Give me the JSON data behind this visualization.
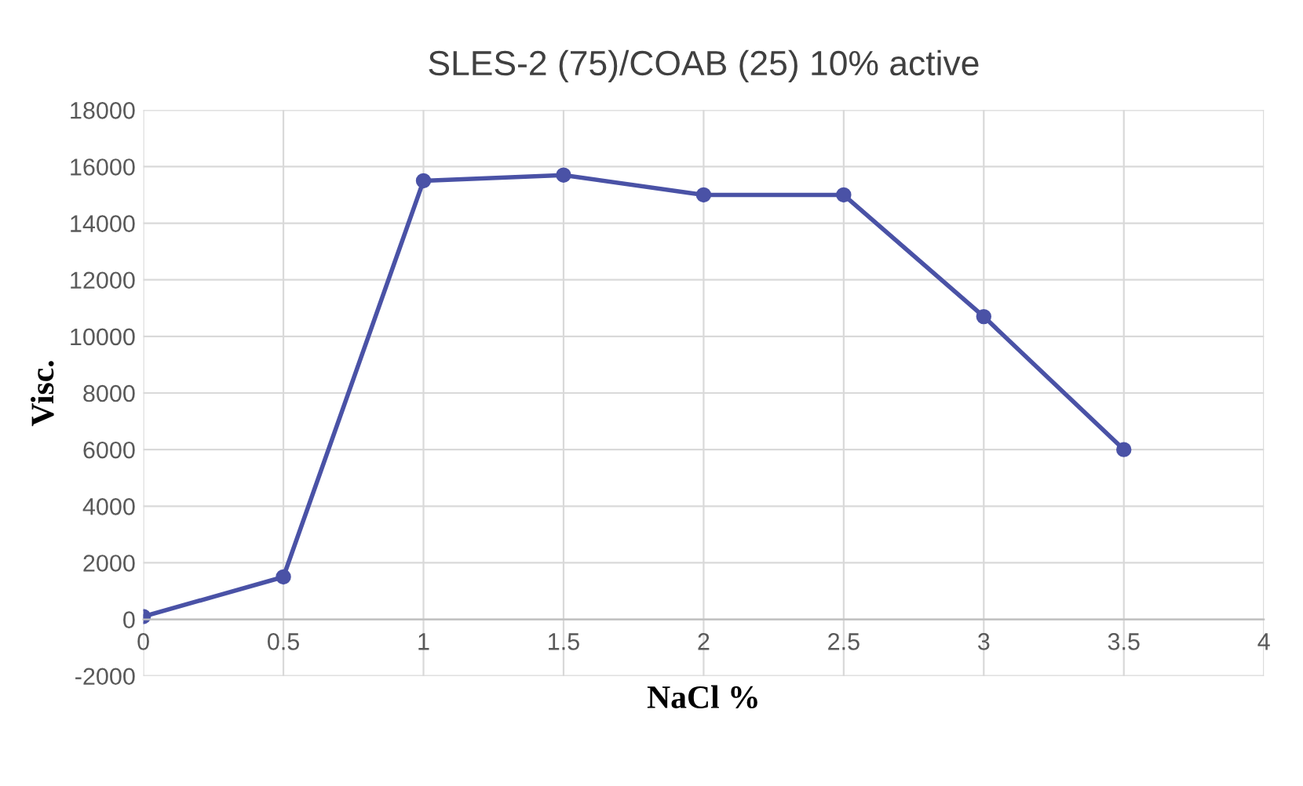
{
  "chart_data": {
    "type": "line",
    "title": "SLES-2 (75)/COAB (25) 10% active",
    "xlabel": "NaCl %",
    "ylabel": "Visc.",
    "x": [
      0,
      0.5,
      1,
      1.5,
      2,
      2.5,
      3,
      3.5
    ],
    "series": [
      {
        "color": "#4a52a6",
        "values": [
          100,
          1500,
          15500,
          15700,
          15000,
          15000,
          10700,
          6000
        ]
      }
    ],
    "xlim": [
      0,
      4
    ],
    "xticks": [
      0,
      0.5,
      1,
      1.5,
      2,
      2.5,
      3,
      3.5,
      4
    ],
    "ylim": [
      -2000,
      18000
    ],
    "yticks": [
      -2000,
      0,
      2000,
      4000,
      6000,
      8000,
      10000,
      12000,
      14000,
      16000,
      18000
    ],
    "grid": true,
    "marker": "circle",
    "line_style": "solid"
  }
}
